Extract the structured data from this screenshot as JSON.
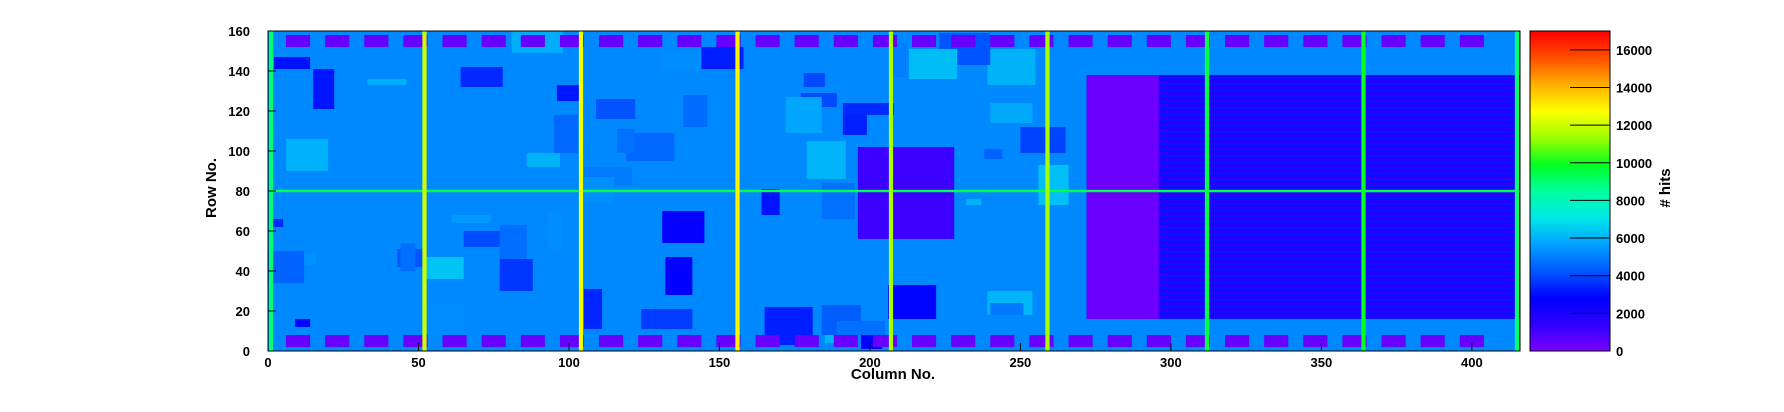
{
  "chart_data": {
    "type": "heatmap",
    "xlabel": "Column No.",
    "ylabel": "Row No.",
    "zlabel": "# hits",
    "xlim": [
      0,
      416
    ],
    "ylim": [
      0,
      160
    ],
    "zlim": [
      0,
      17000
    ],
    "x_ticks": [
      0,
      50,
      100,
      150,
      200,
      250,
      300,
      350,
      400
    ],
    "y_ticks": [
      0,
      20,
      40,
      60,
      80,
      100,
      120,
      140,
      160
    ],
    "z_ticks": [
      0,
      2000,
      4000,
      6000,
      8000,
      10000,
      12000,
      14000,
      16000
    ],
    "colormap": [
      "#7b00ff",
      "#2f00ff",
      "#0000ff",
      "#0057ff",
      "#00a0ff",
      "#00e8e8",
      "#00ffa0",
      "#00ff20",
      "#9cff00",
      "#ffff00",
      "#ffb000",
      "#ff5000",
      "#ff0000"
    ],
    "background_level": 5200,
    "features": {
      "hot_columns": [
        {
          "col": 1,
          "value": 9000
        },
        {
          "col": 52,
          "value": 12000
        },
        {
          "col": 104,
          "value": 12500
        },
        {
          "col": 156,
          "value": 13000
        },
        {
          "col": 207,
          "value": 11500
        },
        {
          "col": 259,
          "value": 11500
        },
        {
          "col": 312,
          "value": 9500
        },
        {
          "col": 364,
          "value": 10000
        },
        {
          "col": 415,
          "value": 9000
        }
      ],
      "hot_row": {
        "row": 80,
        "value": 9500
      },
      "low_region": {
        "x": [
          272,
          416
        ],
        "y": [
          16,
          138
        ],
        "value": 1700
      },
      "dense_block": {
        "x": [
          272,
          296
        ],
        "y": [
          16,
          138
        ],
        "value": 300
      },
      "pads_top": {
        "y": [
          152,
          158
        ],
        "value": 400
      },
      "pads_bottom": {
        "y": [
          2,
          8
        ],
        "value": 400
      },
      "center_block": {
        "x": [
          196,
          228
        ],
        "y": [
          56,
          102
        ],
        "value": 1200
      }
    }
  }
}
